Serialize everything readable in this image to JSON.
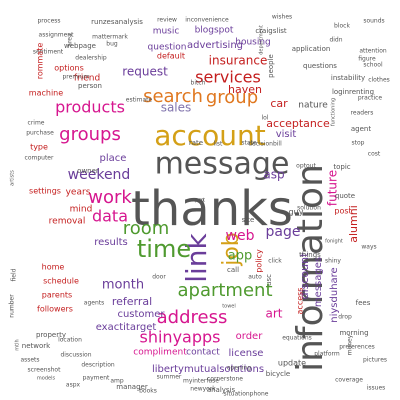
{
  "title": "",
  "palette": {
    "gray": "#555555",
    "orange": "#e07820",
    "red": "#c41e1e",
    "pink": "#d6168f",
    "magenta": "#e11d8c",
    "purple": "#6a3d9a",
    "lavender": "#8073ac",
    "green": "#4f9a2f",
    "teal": "#2a9a86",
    "olive": "#8a8a1f",
    "gold": "#d4a017",
    "brown": "#8b4513",
    "blue": "#3a5fb0"
  },
  "words": [
    {
      "text": "thanks",
      "size": 48,
      "color": "gray",
      "rotation": 0
    },
    {
      "text": "information",
      "size": 36,
      "color": "gray",
      "rotation": -90
    },
    {
      "text": "message",
      "size": 30,
      "color": "gray",
      "rotation": 0
    },
    {
      "text": "account",
      "size": 28,
      "color": "gold",
      "rotation": 0
    },
    {
      "text": "link",
      "size": 28,
      "color": "purple",
      "rotation": -90
    },
    {
      "text": "job",
      "size": 22,
      "color": "gold",
      "rotation": -90
    },
    {
      "text": "time",
      "size": 24,
      "color": "green",
      "rotation": 0
    },
    {
      "text": "search",
      "size": 18,
      "color": "orange",
      "rotation": 0
    },
    {
      "text": "group",
      "size": 18,
      "color": "orange",
      "rotation": 0
    },
    {
      "text": "services",
      "size": 16,
      "color": "red",
      "rotation": 0
    },
    {
      "text": "products",
      "size": 16,
      "color": "pink",
      "rotation": 0
    },
    {
      "text": "groups",
      "size": 18,
      "color": "pink",
      "rotation": 0
    },
    {
      "text": "work",
      "size": 18,
      "color": "pink",
      "rotation": 0
    },
    {
      "text": "room",
      "size": 18,
      "color": "green",
      "rotation": 0
    },
    {
      "text": "apartment",
      "size": 18,
      "color": "green",
      "rotation": 0
    },
    {
      "text": "address",
      "size": 18,
      "color": "pink",
      "rotation": 0
    },
    {
      "text": "shinyapps",
      "size": 16,
      "color": "pink",
      "rotation": 0
    },
    {
      "text": "data",
      "size": 16,
      "color": "pink",
      "rotation": 0
    },
    {
      "text": "page",
      "size": 14,
      "color": "purple",
      "rotation": 0
    },
    {
      "text": "web",
      "size": 14,
      "color": "pink",
      "rotation": 0
    },
    {
      "text": "app",
      "size": 13,
      "color": "green",
      "rotation": 0
    },
    {
      "text": "weekend",
      "size": 14,
      "color": "purple",
      "rotation": 0
    },
    {
      "text": "month",
      "size": 13,
      "color": "purple",
      "rotation": 0
    },
    {
      "text": "request",
      "size": 12,
      "color": "purple",
      "rotation": 0
    },
    {
      "text": "sales",
      "size": 12,
      "color": "lavender",
      "rotation": 0
    },
    {
      "text": "insurance",
      "size": 12,
      "color": "red",
      "rotation": 0
    },
    {
      "text": "haven",
      "size": 11,
      "color": "red",
      "rotation": 0
    },
    {
      "text": "acceptance",
      "size": 11,
      "color": "red",
      "rotation": 0
    },
    {
      "text": "future",
      "size": 12,
      "color": "pink",
      "rotation": -90
    },
    {
      "text": "alumni",
      "size": 11,
      "color": "red",
      "rotation": -90
    },
    {
      "text": "discount",
      "size": 11,
      "color": "purple",
      "rotation": -90
    },
    {
      "text": "messages",
      "size": 10,
      "color": "purple",
      "rotation": -90
    },
    {
      "text": "niysduhare",
      "size": 10,
      "color": "purple",
      "rotation": -90
    },
    {
      "text": "asp",
      "size": 12,
      "color": "purple",
      "rotation": 0
    },
    {
      "text": "car",
      "size": 11,
      "color": "red",
      "rotation": 0
    },
    {
      "text": "nature",
      "size": 9,
      "color": "gray",
      "rotation": 0
    },
    {
      "text": "visit",
      "size": 10,
      "color": "purple",
      "rotation": 0
    },
    {
      "text": "place",
      "size": 10,
      "color": "purple",
      "rotation": 0
    },
    {
      "text": "results",
      "size": 10,
      "color": "purple",
      "rotation": 0
    },
    {
      "text": "referral",
      "size": 11,
      "color": "purple",
      "rotation": 0
    },
    {
      "text": "customer",
      "size": 10,
      "color": "purple",
      "rotation": 0
    },
    {
      "text": "exactitarget",
      "size": 10,
      "color": "purple",
      "rotation": 0
    },
    {
      "text": "compliment",
      "size": 9,
      "color": "pink",
      "rotation": 0
    },
    {
      "text": "libertymutualsolutions",
      "size": 10,
      "color": "purple",
      "rotation": 0
    },
    {
      "text": "license",
      "size": 10,
      "color": "purple",
      "rotation": 0
    },
    {
      "text": "order",
      "size": 10,
      "color": "pink",
      "rotation": 0
    },
    {
      "text": "contact",
      "size": 9,
      "color": "purple",
      "rotation": 0
    },
    {
      "text": "art",
      "size": 12,
      "color": "pink",
      "rotation": 0
    },
    {
      "text": "update",
      "size": 8,
      "color": "gray",
      "rotation": 0
    },
    {
      "text": "advertising",
      "size": 10,
      "color": "purple",
      "rotation": 0
    },
    {
      "text": "question",
      "size": 9,
      "color": "purple",
      "rotation": 0
    },
    {
      "text": "housing",
      "size": 9,
      "color": "purple",
      "rotation": 0
    },
    {
      "text": "music",
      "size": 9,
      "color": "purple",
      "rotation": 0
    },
    {
      "text": "blogspot",
      "size": 9,
      "color": "purple",
      "rotation": 0
    },
    {
      "text": "friend",
      "size": 9,
      "color": "red",
      "rotation": 0
    },
    {
      "text": "options",
      "size": 8,
      "color": "red",
      "rotation": 0
    },
    {
      "text": "default",
      "size": 8,
      "color": "red",
      "rotation": 0
    },
    {
      "text": "machine",
      "size": 8,
      "color": "red",
      "rotation": 0
    },
    {
      "text": "type",
      "size": 8,
      "color": "red",
      "rotation": 0
    },
    {
      "text": "settings",
      "size": 8,
      "color": "red",
      "rotation": 0
    },
    {
      "text": "years",
      "size": 9,
      "color": "red",
      "rotation": 0
    },
    {
      "text": "mind",
      "size": 9,
      "color": "red",
      "rotation": 0
    },
    {
      "text": "removal",
      "size": 9,
      "color": "red",
      "rotation": 0
    },
    {
      "text": "home",
      "size": 8,
      "color": "red",
      "rotation": 0
    },
    {
      "text": "schedule",
      "size": 8,
      "color": "red",
      "rotation": 0
    },
    {
      "text": "parents",
      "size": 8,
      "color": "red",
      "rotation": 0
    },
    {
      "text": "followers",
      "size": 8,
      "color": "red",
      "rotation": 0
    },
    {
      "text": "property",
      "size": 7,
      "color": "gray",
      "rotation": 0
    },
    {
      "text": "network",
      "size": 7,
      "color": "gray",
      "rotation": 0
    },
    {
      "text": "process",
      "size": 6,
      "color": "gray",
      "rotation": 0
    },
    {
      "text": "runzesanalysis",
      "size": 7,
      "color": "gray",
      "rotation": 0
    },
    {
      "text": "review",
      "size": 6,
      "color": "gray",
      "rotation": 0
    },
    {
      "text": "inconvenience",
      "size": 6,
      "color": "gray",
      "rotation": 0
    },
    {
      "text": "wishes",
      "size": 6,
      "color": "gray",
      "rotation": 0
    },
    {
      "text": "sounds",
      "size": 6,
      "color": "gray",
      "rotation": 0
    },
    {
      "text": "craigslist",
      "size": 7,
      "color": "gray",
      "rotation": 0
    },
    {
      "text": "block",
      "size": 6,
      "color": "gray",
      "rotation": 0
    },
    {
      "text": "assignment",
      "size": 6,
      "color": "gray",
      "rotation": 0
    },
    {
      "text": "mattermark",
      "size": 6,
      "color": "gray",
      "rotation": 0
    },
    {
      "text": "webpage",
      "size": 7,
      "color": "gray",
      "rotation": 0
    },
    {
      "text": "sentiment",
      "size": 6,
      "color": "gray",
      "rotation": 0
    },
    {
      "text": "dealership",
      "size": 6,
      "color": "gray",
      "rotation": 0
    },
    {
      "text": "application",
      "size": 7,
      "color": "gray",
      "rotation": 0
    },
    {
      "text": "questions",
      "size": 7,
      "color": "gray",
      "rotation": 0
    },
    {
      "text": "instability",
      "size": 7,
      "color": "gray",
      "rotation": 0
    },
    {
      "text": "loginrenting",
      "size": 7,
      "color": "gray",
      "rotation": 0
    },
    {
      "text": "premium",
      "size": 6,
      "color": "gray",
      "rotation": 0
    },
    {
      "text": "person",
      "size": 7,
      "color": "gray",
      "rotation": 0
    },
    {
      "text": "crime",
      "size": 6,
      "color": "gray",
      "rotation": 0
    },
    {
      "text": "purchase",
      "size": 6,
      "color": "gray",
      "rotation": 0
    },
    {
      "text": "computer",
      "size": 6,
      "color": "gray",
      "rotation": 0
    },
    {
      "text": "agent",
      "size": 7,
      "color": "gray",
      "rotation": 0
    },
    {
      "text": "owner",
      "size": 7,
      "color": "gray",
      "rotation": 0
    },
    {
      "text": "stop",
      "size": 6,
      "color": "gray",
      "rotation": 0
    },
    {
      "text": "optout",
      "size": 6,
      "color": "gray",
      "rotation": 0
    },
    {
      "text": "topic",
      "size": 7,
      "color": "gray",
      "rotation": 0
    },
    {
      "text": "quote",
      "size": 7,
      "color": "gray",
      "rotation": 0
    },
    {
      "text": "post",
      "size": 8,
      "color": "red",
      "rotation": 0
    },
    {
      "text": "guy",
      "size": 8,
      "color": "gray",
      "rotation": 0
    },
    {
      "text": "things",
      "size": 7,
      "color": "gray",
      "rotation": 0
    },
    {
      "text": "fees",
      "size": 7,
      "color": "gray",
      "rotation": 0
    },
    {
      "text": "drop",
      "size": 6,
      "color": "gray",
      "rotation": 0
    },
    {
      "text": "morning",
      "size": 7,
      "color": "gray",
      "rotation": 0
    },
    {
      "text": "equations",
      "size": 6,
      "color": "gray",
      "rotation": 0
    },
    {
      "text": "preferences",
      "size": 6,
      "color": "gray",
      "rotation": 0
    },
    {
      "text": "platform",
      "size": 6,
      "color": "gray",
      "rotation": 0
    },
    {
      "text": "opening",
      "size": 6,
      "color": "gray",
      "rotation": 0
    },
    {
      "text": "bicycle",
      "size": 7,
      "color": "gray",
      "rotation": 0
    },
    {
      "text": "cornerstone",
      "size": 6,
      "color": "gray",
      "rotation": 0
    },
    {
      "text": "newyork",
      "size": 6,
      "color": "gray",
      "rotation": 0
    },
    {
      "text": "summer",
      "size": 6,
      "color": "gray",
      "rotation": 0
    },
    {
      "text": "analysis",
      "size": 7,
      "color": "gray",
      "rotation": 0
    },
    {
      "text": "books",
      "size": 6,
      "color": "gray",
      "rotation": 0
    },
    {
      "text": "manager",
      "size": 7,
      "color": "gray",
      "rotation": 0
    },
    {
      "text": "models",
      "size": 5,
      "color": "gray",
      "rotation": 0
    },
    {
      "text": "description",
      "size": 6,
      "color": "gray",
      "rotation": 0
    },
    {
      "text": "payment",
      "size": 6,
      "color": "gray",
      "rotation": 0
    },
    {
      "text": "discussion",
      "size": 6,
      "color": "gray",
      "rotation": 0
    },
    {
      "text": "location",
      "size": 6,
      "color": "gray",
      "rotation": 0
    },
    {
      "text": "screenshot",
      "size": 6,
      "color": "gray",
      "rotation": 0
    },
    {
      "text": "assets",
      "size": 6,
      "color": "gray",
      "rotation": 0
    },
    {
      "text": "aspx",
      "size": 6,
      "color": "gray",
      "rotation": 0
    },
    {
      "text": "amp",
      "size": 6,
      "color": "gray",
      "rotation": 0
    },
    {
      "text": "myinterfase",
      "size": 6,
      "color": "gray",
      "rotation": 0
    },
    {
      "text": "door",
      "size": 6,
      "color": "gray",
      "rotation": 0
    },
    {
      "text": "auto",
      "size": 6,
      "color": "gray",
      "rotation": 0
    },
    {
      "text": "click",
      "size": 6,
      "color": "gray",
      "rotation": 0
    },
    {
      "text": "call",
      "size": 7,
      "color": "gray",
      "rotation": 0
    },
    {
      "text": "site",
      "size": 7,
      "color": "gray",
      "rotation": 0
    },
    {
      "text": "rate",
      "size": 7,
      "color": "gray",
      "rotation": 0
    },
    {
      "text": "list",
      "size": 6,
      "color": "gray",
      "rotation": 0
    },
    {
      "text": "state",
      "size": 6,
      "color": "gray",
      "rotation": 0
    },
    {
      "text": "decisionbill",
      "size": 6,
      "color": "gray",
      "rotation": 0
    },
    {
      "text": "lol",
      "size": 6,
      "color": "gray",
      "rotation": 0
    },
    {
      "text": "bug",
      "size": 6,
      "color": "gray",
      "rotation": 0
    },
    {
      "text": "estimate",
      "size": 6,
      "color": "gray",
      "rotation": 0
    },
    {
      "text": "bitch",
      "size": 6,
      "color": "gray",
      "rotation": 0
    },
    {
      "text": "didn",
      "size": 6,
      "color": "gray",
      "rotation": 0
    },
    {
      "text": "attention",
      "size": 6,
      "color": "gray",
      "rotation": 0
    },
    {
      "text": "school",
      "size": 6,
      "color": "gray",
      "rotation": 0
    },
    {
      "text": "figure",
      "size": 6,
      "color": "gray",
      "rotation": 0
    },
    {
      "text": "clothes",
      "size": 6,
      "color": "gray",
      "rotation": 0
    },
    {
      "text": "practice",
      "size": 6,
      "color": "gray",
      "rotation": 0
    },
    {
      "text": "cost",
      "size": 6,
      "color": "gray",
      "rotation": 0
    },
    {
      "text": "ways",
      "size": 6,
      "color": "gray",
      "rotation": 0
    },
    {
      "text": "shiny",
      "size": 6,
      "color": "gray",
      "rotation": 0
    },
    {
      "text": "coverage",
      "size": 6,
      "color": "gray",
      "rotation": 0
    },
    {
      "text": "issues",
      "size": 6,
      "color": "gray",
      "rotation": 0
    },
    {
      "text": "pictures",
      "size": 6,
      "color": "gray",
      "rotation": 0
    },
    {
      "text": "readers",
      "size": 6,
      "color": "gray",
      "rotation": 0
    },
    {
      "text": "fonight",
      "size": 5,
      "color": "gray",
      "rotation": 0
    },
    {
      "text": "solution",
      "size": 6,
      "color": "gray",
      "rotation": 0
    },
    {
      "text": "people",
      "size": 7,
      "color": "gray",
      "rotation": -90
    },
    {
      "text": "access",
      "size": 8,
      "color": "red",
      "rotation": -90
    },
    {
      "text": "policy",
      "size": 8,
      "color": "red",
      "rotation": -90
    },
    {
      "text": "usc",
      "size": 7,
      "color": "gray",
      "rotation": -90
    },
    {
      "text": "money",
      "size": 6,
      "color": "gray",
      "rotation": -90
    },
    {
      "text": "field",
      "size": 6,
      "color": "gray",
      "rotation": -90
    },
    {
      "text": "number",
      "size": 6,
      "color": "gray",
      "rotation": -90
    },
    {
      "text": "mtlh",
      "size": 5,
      "color": "gray",
      "rotation": -90
    },
    {
      "text": "artists",
      "size": 5,
      "color": "gray",
      "rotation": -90
    },
    {
      "text": "department",
      "size": 5,
      "color": "gray",
      "rotation": -90
    },
    {
      "text": "functioning",
      "size": 5,
      "color": "gray",
      "rotation": -90
    },
    {
      "text": "area",
      "size": 6,
      "color": "gray",
      "rotation": -90
    },
    {
      "text": "rommate",
      "size": 8,
      "color": "red",
      "rotation": -90
    },
    {
      "text": "agents",
      "size": 6,
      "color": "gray",
      "rotation": 0
    },
    {
      "text": "situationphone",
      "size": 6,
      "color": "gray",
      "rotation": 0
    },
    {
      "text": "towel",
      "size": 5,
      "color": "gray",
      "rotation": 0
    },
    {
      "text": "part",
      "size": 5,
      "color": "gray",
      "rotation": 0
    },
    {
      "text": "org",
      "size": 5,
      "color": "gray",
      "rotation": 0
    }
  ]
}
